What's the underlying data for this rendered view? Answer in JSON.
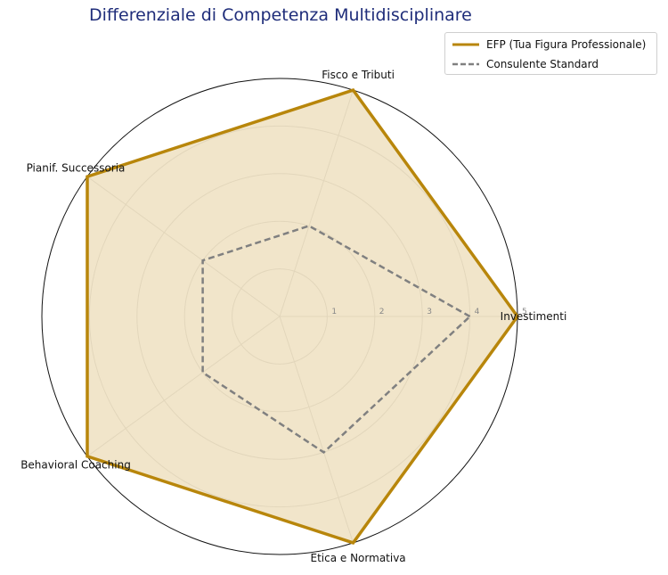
{
  "chart_data": {
    "type": "radar",
    "title": "Differenziale di Competenza Multidisciplinare",
    "categories": [
      "Investimenti",
      "Fisco e Tributi",
      "Pianif. Successoria",
      "Behavioral Coaching",
      "Etica e Normativa"
    ],
    "rlim": [
      0,
      5
    ],
    "rticks": [
      "1",
      "2",
      "3",
      "4",
      "5"
    ],
    "grid": true,
    "legend_position": "top-right",
    "series": [
      {
        "name": "EFP (Tua Figura Professionale)",
        "values": [
          5,
          5,
          5,
          5,
          5
        ],
        "color": "#b8860b",
        "fill": "#ecdcb8",
        "line_style": "solid"
      },
      {
        "name": "Consulente Standard",
        "values": [
          4,
          2,
          2,
          2,
          3
        ],
        "color": "#808080",
        "line_style": "dashed"
      }
    ]
  }
}
